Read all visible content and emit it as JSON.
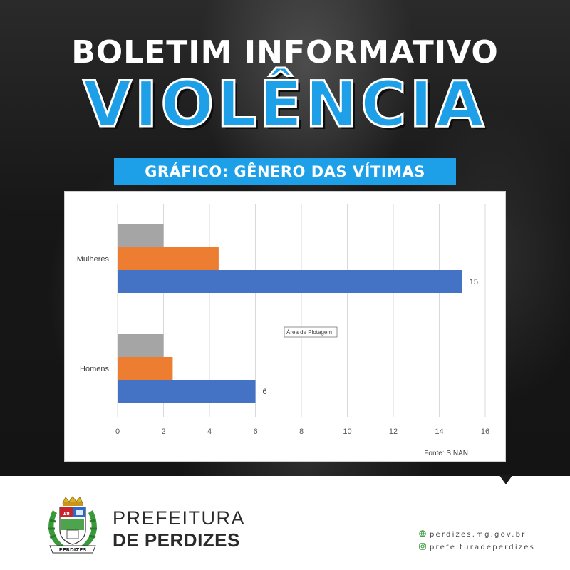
{
  "header": {
    "title_top": "BOLETIM INFORMATIVO",
    "title_main": "VIOLÊNCIA",
    "subtitle": "GRÁFICO: GÊNERO DAS VÍTIMAS"
  },
  "chart_data": {
    "type": "bar",
    "orientation": "horizontal",
    "categories": [
      "Mulheres",
      "Homens"
    ],
    "series": [
      {
        "color": "#4472c4",
        "values": [
          15,
          6
        ]
      },
      {
        "color": "#ed7d31",
        "values": [
          4.4,
          2.4
        ]
      },
      {
        "color": "#a5a5a5",
        "values": [
          2,
          2
        ]
      }
    ],
    "data_labels": [
      "15",
      "6"
    ],
    "xlim": [
      0,
      16
    ],
    "x_ticks": [
      0,
      2,
      4,
      6,
      8,
      10,
      12,
      14,
      16
    ],
    "grid": true,
    "tooltip": "Área de Plotagem",
    "source": "Fonte: SINAN"
  },
  "footer": {
    "org_line1": "PREFEITURA",
    "org_line2": "DE PERDIZES",
    "crest_year": "18",
    "crest_banner": "PERDIZES",
    "website": "perdizes.mg.gov.br",
    "instagram": "prefeituradeperdizes",
    "website_icon": "globe-icon",
    "instagram_icon": "instagram-icon"
  },
  "colors": {
    "accent": "#1ea0e8",
    "dark_background": "#1c1c1c"
  }
}
